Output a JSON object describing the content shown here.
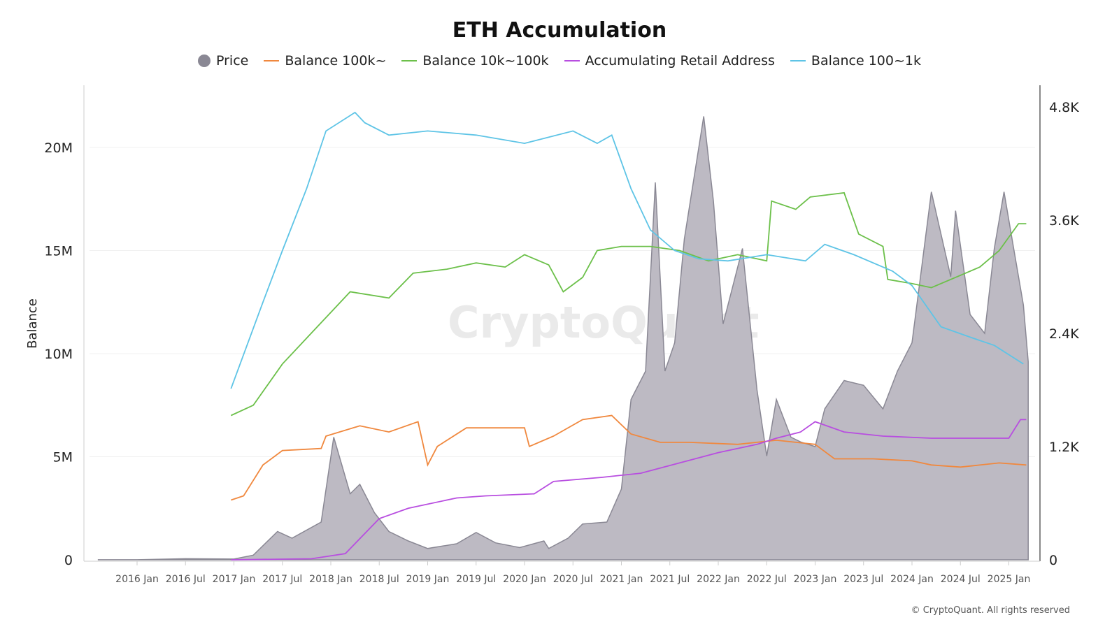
{
  "chart_data": {
    "type": "line",
    "title": "ETH Accumulation",
    "ylabel": "Balance",
    "ylim": [
      0,
      23000000
    ],
    "y2lim": [
      0,
      5000
    ],
    "y_ticks": [
      "0",
      "5M",
      "10M",
      "15M",
      "20M"
    ],
    "y2_ticks": [
      "0",
      "1.2K",
      "2.4K",
      "3.6K",
      "4.8K"
    ],
    "x_ticks": [
      "2016 Jan",
      "2016 Jul",
      "2017 Jan",
      "2017 Jul",
      "2018 Jan",
      "2018 Jul",
      "2019 Jan",
      "2019 Jul",
      "2020 Jan",
      "2020 Jul",
      "2021 Jan",
      "2021 Jul",
      "2022 Jan",
      "2022 Jul",
      "2023 Jan",
      "2023 Jul",
      "2024 Jan",
      "2024 Jul",
      "2025 Jan"
    ],
    "legend_position": "top-center",
    "watermark": "CryptoQuant",
    "series": [
      {
        "name": "Price",
        "type": "area",
        "axis": "right",
        "color": "#8a8894",
        "points": [
          [
            2015.6,
            1
          ],
          [
            2016.0,
            1
          ],
          [
            2016.5,
            12
          ],
          [
            2017.0,
            8
          ],
          [
            2017.2,
            50
          ],
          [
            2017.45,
            300
          ],
          [
            2017.6,
            230
          ],
          [
            2017.9,
            400
          ],
          [
            2018.03,
            1300
          ],
          [
            2018.2,
            700
          ],
          [
            2018.3,
            800
          ],
          [
            2018.45,
            500
          ],
          [
            2018.6,
            300
          ],
          [
            2018.8,
            200
          ],
          [
            2019.0,
            120
          ],
          [
            2019.3,
            170
          ],
          [
            2019.5,
            290
          ],
          [
            2019.7,
            180
          ],
          [
            2019.95,
            130
          ],
          [
            2020.2,
            200
          ],
          [
            2020.25,
            120
          ],
          [
            2020.45,
            230
          ],
          [
            2020.6,
            380
          ],
          [
            2020.85,
            400
          ],
          [
            2021.0,
            750
          ],
          [
            2021.1,
            1700
          ],
          [
            2021.25,
            2000
          ],
          [
            2021.35,
            4000
          ],
          [
            2021.45,
            2000
          ],
          [
            2021.55,
            2300
          ],
          [
            2021.65,
            3400
          ],
          [
            2021.85,
            4700
          ],
          [
            2021.95,
            3800
          ],
          [
            2022.05,
            2500
          ],
          [
            2022.15,
            2900
          ],
          [
            2022.25,
            3300
          ],
          [
            2022.4,
            1800
          ],
          [
            2022.5,
            1100
          ],
          [
            2022.6,
            1700
          ],
          [
            2022.75,
            1300
          ],
          [
            2022.85,
            1250
          ],
          [
            2023.0,
            1200
          ],
          [
            2023.1,
            1600
          ],
          [
            2023.3,
            1900
          ],
          [
            2023.5,
            1850
          ],
          [
            2023.7,
            1600
          ],
          [
            2023.85,
            2000
          ],
          [
            2024.0,
            2300
          ],
          [
            2024.15,
            3500
          ],
          [
            2024.2,
            3900
          ],
          [
            2024.4,
            3000
          ],
          [
            2024.45,
            3700
          ],
          [
            2024.6,
            2600
          ],
          [
            2024.75,
            2400
          ],
          [
            2024.85,
            3300
          ],
          [
            2024.95,
            3900
          ],
          [
            2025.05,
            3300
          ],
          [
            2025.15,
            2700
          ],
          [
            2025.2,
            2100
          ]
        ]
      },
      {
        "name": "Balance 100k~",
        "axis": "left",
        "color": "#f0883e",
        "points": [
          [
            2016.97,
            2.9
          ],
          [
            2017.1,
            3.1
          ],
          [
            2017.3,
            4.6
          ],
          [
            2017.5,
            5.3
          ],
          [
            2017.9,
            5.4
          ],
          [
            2017.95,
            6.0
          ],
          [
            2018.3,
            6.5
          ],
          [
            2018.6,
            6.2
          ],
          [
            2018.9,
            6.7
          ],
          [
            2019.0,
            4.6
          ],
          [
            2019.1,
            5.5
          ],
          [
            2019.4,
            6.4
          ],
          [
            2019.7,
            6.4
          ],
          [
            2020.0,
            6.4
          ],
          [
            2020.05,
            5.5
          ],
          [
            2020.3,
            6.0
          ],
          [
            2020.6,
            6.8
          ],
          [
            2020.9,
            7.0
          ],
          [
            2021.1,
            6.1
          ],
          [
            2021.4,
            5.7
          ],
          [
            2021.7,
            5.7
          ],
          [
            2022.2,
            5.6
          ],
          [
            2022.6,
            5.8
          ],
          [
            2023.0,
            5.6
          ],
          [
            2023.2,
            4.9
          ],
          [
            2023.6,
            4.9
          ],
          [
            2024.0,
            4.8
          ],
          [
            2024.2,
            4.6
          ],
          [
            2024.5,
            4.5
          ],
          [
            2024.9,
            4.7
          ],
          [
            2025.18,
            4.6
          ]
        ]
      },
      {
        "name": "Balance 10k~100k",
        "axis": "left",
        "color": "#6cc04a",
        "points": [
          [
            2016.97,
            7.0
          ],
          [
            2017.2,
            7.5
          ],
          [
            2017.5,
            9.5
          ],
          [
            2017.8,
            11
          ],
          [
            2018.0,
            12
          ],
          [
            2018.2,
            13
          ],
          [
            2018.6,
            12.7
          ],
          [
            2018.85,
            13.9
          ],
          [
            2019.2,
            14.1
          ],
          [
            2019.5,
            14.4
          ],
          [
            2019.8,
            14.2
          ],
          [
            2020.0,
            14.8
          ],
          [
            2020.25,
            14.3
          ],
          [
            2020.4,
            13.0
          ],
          [
            2020.6,
            13.7
          ],
          [
            2020.75,
            15.0
          ],
          [
            2021.0,
            15.2
          ],
          [
            2021.3,
            15.2
          ],
          [
            2021.6,
            15.0
          ],
          [
            2021.9,
            14.5
          ],
          [
            2022.2,
            14.8
          ],
          [
            2022.5,
            14.5
          ],
          [
            2022.55,
            17.4
          ],
          [
            2022.8,
            17
          ],
          [
            2022.95,
            17.6
          ],
          [
            2023.3,
            17.8
          ],
          [
            2023.45,
            15.8
          ],
          [
            2023.7,
            15.2
          ],
          [
            2023.75,
            13.6
          ],
          [
            2024.0,
            13.4
          ],
          [
            2024.2,
            13.2
          ],
          [
            2024.5,
            13.8
          ],
          [
            2024.7,
            14.2
          ],
          [
            2024.9,
            15.0
          ],
          [
            2025.1,
            16.3
          ],
          [
            2025.18,
            16.3
          ]
        ]
      },
      {
        "name": "Accumulating Retail Address",
        "axis": "left",
        "color": "#b84ee0",
        "points": [
          [
            2016.97,
            0
          ],
          [
            2017.8,
            0.05
          ],
          [
            2018.15,
            0.3
          ],
          [
            2018.5,
            2.0
          ],
          [
            2018.8,
            2.5
          ],
          [
            2019.3,
            3.0
          ],
          [
            2019.6,
            3.1
          ],
          [
            2020.1,
            3.2
          ],
          [
            2020.3,
            3.8
          ],
          [
            2020.8,
            4.0
          ],
          [
            2021.2,
            4.2
          ],
          [
            2021.6,
            4.7
          ],
          [
            2022.0,
            5.2
          ],
          [
            2022.4,
            5.6
          ],
          [
            2022.6,
            5.9
          ],
          [
            2022.85,
            6.2
          ],
          [
            2023.0,
            6.7
          ],
          [
            2023.3,
            6.2
          ],
          [
            2023.7,
            6.0
          ],
          [
            2024.2,
            5.9
          ],
          [
            2024.6,
            5.9
          ],
          [
            2025.0,
            5.9
          ],
          [
            2025.12,
            6.8
          ],
          [
            2025.18,
            6.8
          ]
        ]
      },
      {
        "name": "Balance 100~1k",
        "axis": "left",
        "color": "#5ec4e6",
        "points": [
          [
            2016.97,
            8.3
          ],
          [
            2017.3,
            12.5
          ],
          [
            2017.5,
            15
          ],
          [
            2017.75,
            18
          ],
          [
            2017.95,
            20.8
          ],
          [
            2018.25,
            21.7
          ],
          [
            2018.35,
            21.2
          ],
          [
            2018.6,
            20.6
          ],
          [
            2019.0,
            20.8
          ],
          [
            2019.5,
            20.6
          ],
          [
            2020.0,
            20.2
          ],
          [
            2020.5,
            20.8
          ],
          [
            2020.75,
            20.2
          ],
          [
            2020.9,
            20.6
          ],
          [
            2021.1,
            18
          ],
          [
            2021.3,
            16
          ],
          [
            2021.55,
            15
          ],
          [
            2021.8,
            14.6
          ],
          [
            2022.1,
            14.5
          ],
          [
            2022.5,
            14.8
          ],
          [
            2022.9,
            14.5
          ],
          [
            2023.1,
            15.3
          ],
          [
            2023.4,
            14.8
          ],
          [
            2023.8,
            14.0
          ],
          [
            2024.0,
            13.3
          ],
          [
            2024.3,
            11.3
          ],
          [
            2024.6,
            10.8
          ],
          [
            2024.85,
            10.4
          ],
          [
            2025.15,
            9.5
          ]
        ]
      }
    ]
  },
  "footer": "© CryptoQuant. All rights reserved"
}
